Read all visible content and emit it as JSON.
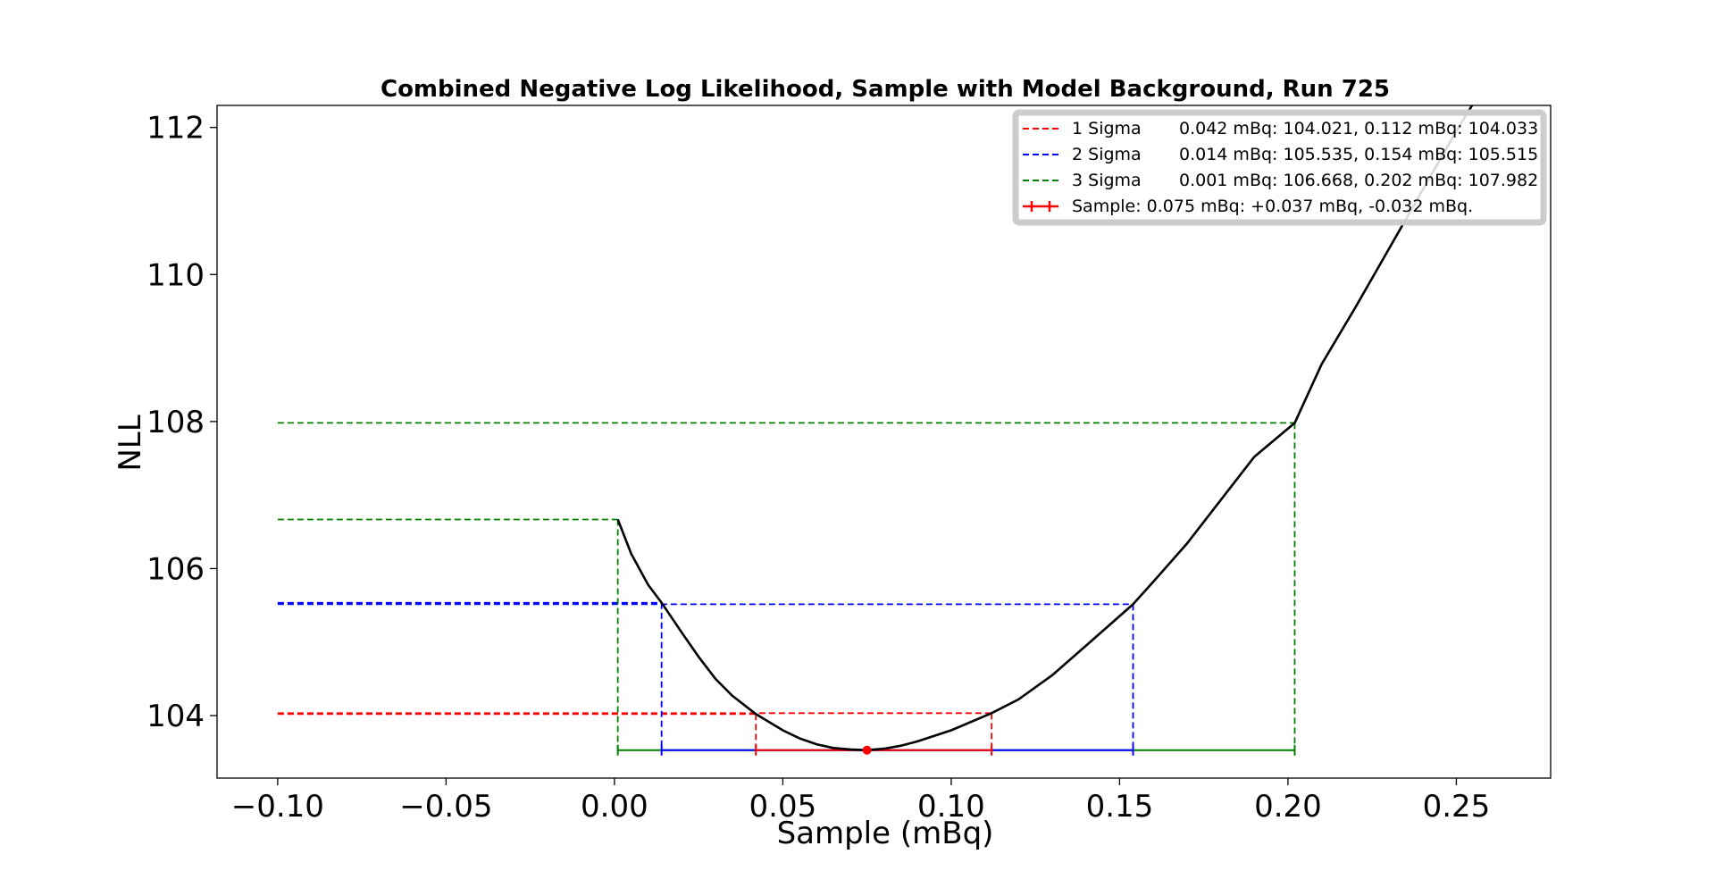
{
  "chart_data": {
    "type": "line",
    "title": "Combined Negative Log Likelihood, Sample with Model Background, Run 725",
    "xlabel": "Sample (mBq)",
    "ylabel": "NLL",
    "xlim": [
      -0.118,
      0.278
    ],
    "ylim": [
      103.15,
      112.3
    ],
    "xticks": [
      -0.1,
      -0.05,
      0.0,
      0.05,
      0.1,
      0.15,
      0.2,
      0.25
    ],
    "xtick_labels": [
      "−0.10",
      "−0.05",
      "0.00",
      "0.05",
      "0.10",
      "0.15",
      "0.20",
      "0.25"
    ],
    "yticks": [
      104,
      106,
      108,
      110,
      112
    ],
    "ytick_labels": [
      "104",
      "106",
      "108",
      "110",
      "112"
    ],
    "grid": false,
    "legend_position": "top-right",
    "curve": {
      "color": "#000000",
      "x": [
        0.001,
        0.005,
        0.01,
        0.014,
        0.02,
        0.025,
        0.03,
        0.035,
        0.042,
        0.05,
        0.055,
        0.06,
        0.065,
        0.07,
        0.075,
        0.08,
        0.085,
        0.09,
        0.1,
        0.112,
        0.12,
        0.13,
        0.14,
        0.154,
        0.16,
        0.17,
        0.18,
        0.19,
        0.202,
        0.21,
        0.22,
        0.23,
        0.24,
        0.25,
        0.26
      ],
      "y": [
        106.668,
        106.2,
        105.78,
        105.535,
        105.13,
        104.8,
        104.5,
        104.27,
        104.021,
        103.8,
        103.69,
        103.61,
        103.56,
        103.54,
        103.53,
        103.55,
        103.59,
        103.65,
        103.8,
        104.033,
        104.22,
        104.55,
        104.95,
        105.515,
        105.82,
        106.34,
        106.93,
        107.52,
        107.982,
        108.78,
        109.55,
        110.35,
        111.15,
        111.95,
        112.7
      ]
    },
    "best_fit": {
      "x": 0.075,
      "y": 103.53,
      "color": "#ff0000"
    },
    "intervals": [
      {
        "name": "1 Sigma",
        "color": "#ff0000",
        "legend": "0.042 mBq: 104.021, 0.112 mBq: 104.033",
        "lo": 0.042,
        "hi": 0.112,
        "y_lo": 104.021,
        "y_hi": 104.033
      },
      {
        "name": "2 Sigma",
        "color": "#0000ff",
        "legend": "0.014 mBq: 105.535, 0.154 mBq: 105.515",
        "lo": 0.014,
        "hi": 0.154,
        "y_lo": 105.535,
        "y_hi": 105.515
      },
      {
        "name": "3 Sigma",
        "color": "#008000",
        "legend": "0.001 mBq: 106.668, 0.202 mBq: 107.982",
        "lo": 0.001,
        "hi": 0.202,
        "y_lo": 106.668,
        "y_hi": 107.982
      }
    ],
    "hline_start_x": -0.1,
    "errorbar_y": 103.53,
    "sample_legend": "Sample: 0.075 mBq: +0.037 mBq, -0.032 mBq."
  }
}
